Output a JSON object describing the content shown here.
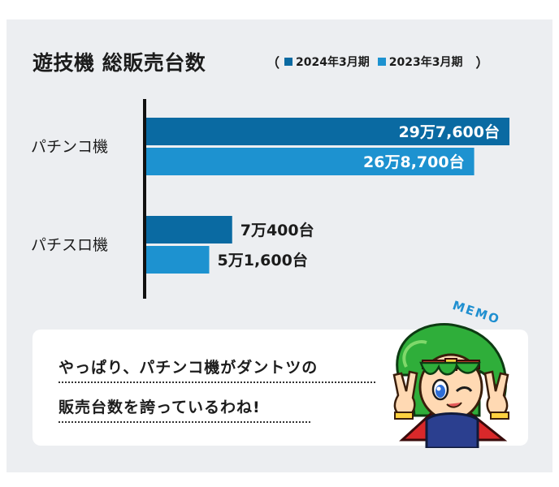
{
  "title": "遊技機 総販売台数",
  "legend": {
    "open": "（",
    "close": "）",
    "items": [
      {
        "label": "2024年3月期",
        "color": "#0a6aa2"
      },
      {
        "label": "2023年3月期",
        "color": "#1d92d0"
      }
    ]
  },
  "chart_data": {
    "type": "bar",
    "orientation": "horizontal",
    "categories": [
      "パチンコ機",
      "パチスロ機"
    ],
    "series": [
      {
        "name": "2024年3月期",
        "color": "#0a6aa2",
        "values": [
          297600,
          70400
        ],
        "labels": [
          "29万7,600台",
          "7万400台"
        ]
      },
      {
        "name": "2023年3月期",
        "color": "#1d92d0",
        "values": [
          268700,
          51600
        ],
        "labels": [
          "26万8,700台",
          "5万1,600台"
        ]
      }
    ],
    "grid": false
  },
  "memo": {
    "tag": "MEMO",
    "line1": "やっぱり、パチンコ機がダントツの",
    "line2": "販売台数を誇っているわね!"
  }
}
